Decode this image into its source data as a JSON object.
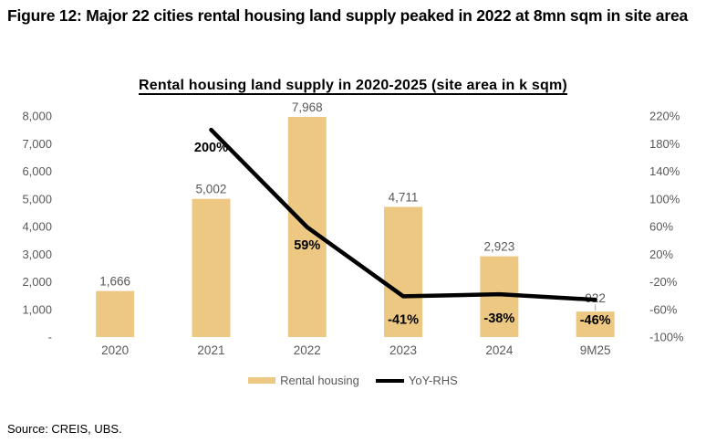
{
  "figure": {
    "title": "Figure 12: Major 22 cities rental housing land supply peaked in 2022 at 8mn sqm in site area",
    "source": "Source: CREIS, UBS."
  },
  "chart_data": {
    "type": "bar",
    "subtype": "combo-bar-line-dual-axis",
    "title": "Rental housing land supply in 2020-2025 (site area in k sqm)",
    "categories": [
      "2020",
      "2021",
      "2022",
      "2023",
      "2024",
      "9M25"
    ],
    "series": [
      {
        "name": "Rental housing",
        "type": "bar",
        "axis": "left",
        "values": [
          1666,
          5002,
          7968,
          4711,
          2923,
          922
        ],
        "value_labels": [
          "1,666",
          "5,002",
          "7,968",
          "4,711",
          "2,923",
          "922"
        ]
      },
      {
        "name": "YoY-RHS",
        "type": "line",
        "axis": "right",
        "values": [
          null,
          200,
          59,
          -41,
          -38,
          -46
        ],
        "value_labels": [
          null,
          "200%",
          "59%",
          "-41%",
          "-38%",
          "-46%"
        ]
      }
    ],
    "left_axis": {
      "min": 0,
      "max": 8000,
      "tick_labels": [
        "8,000",
        "7,000",
        "6,000",
        "5,000",
        "4,000",
        "3,000",
        "2,000",
        "1,000",
        "-"
      ]
    },
    "right_axis": {
      "min": -100,
      "max": 220,
      "tick_labels": [
        "220%",
        "180%",
        "140%",
        "100%",
        "60%",
        "20%",
        "-20%",
        "-60%",
        "-100%"
      ]
    },
    "grid": false,
    "legend_position": "bottom-center",
    "colors": {
      "bar": "#EDC883",
      "line": "#000000",
      "value_label_gray": "#595959",
      "leader_line_gray": "#A6A6A6"
    }
  }
}
